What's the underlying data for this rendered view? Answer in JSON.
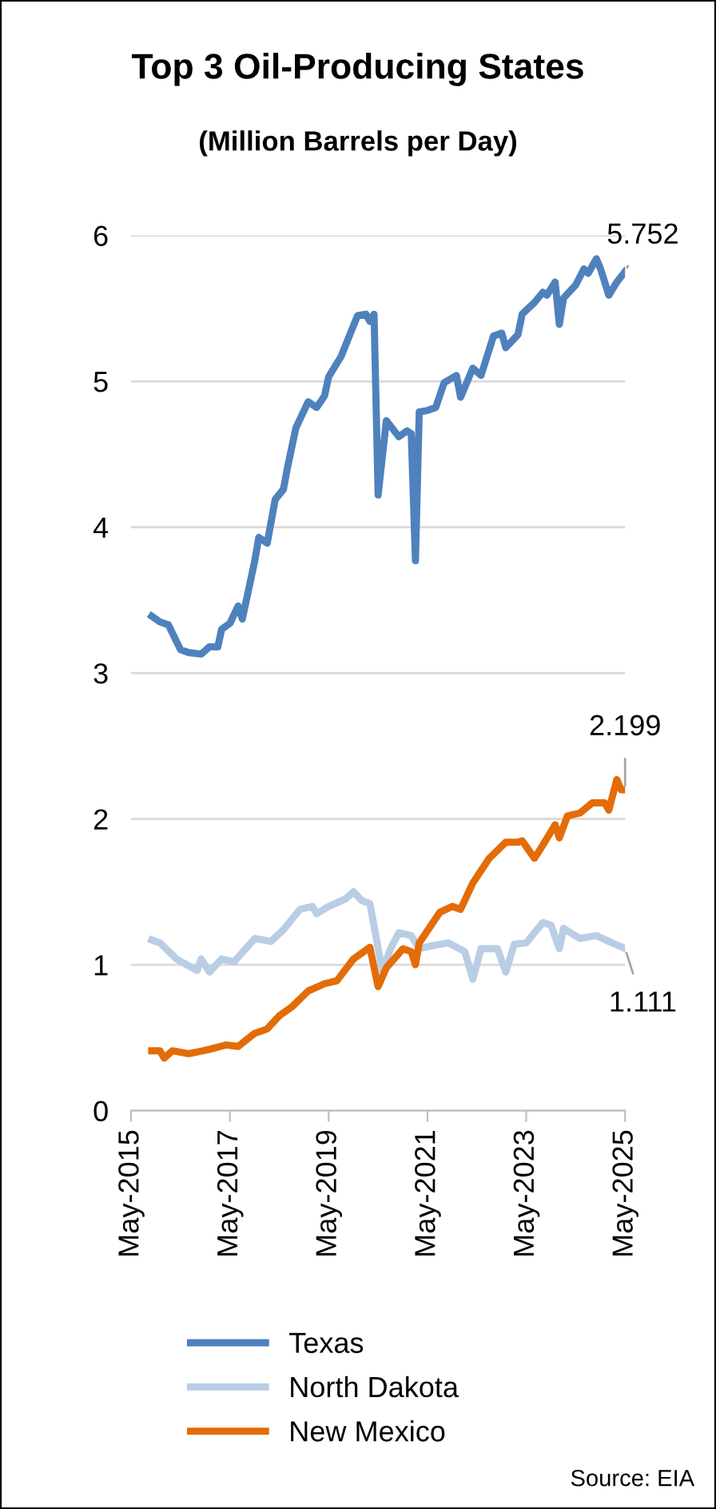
{
  "chart_data": {
    "type": "line",
    "title": "Top 3 Oil-Producing States",
    "subtitle": "(Million Barrels per Day)",
    "xlim": [
      "2015-05",
      "2025-05"
    ],
    "xticks": [
      {
        "value": "2015-05",
        "label": "May-2015"
      },
      {
        "value": "2017-05",
        "label": "May-2017"
      },
      {
        "value": "2019-05",
        "label": "May-2019"
      },
      {
        "value": "2021-05",
        "label": "May-2021"
      },
      {
        "value": "2023-05",
        "label": "May-2023"
      },
      {
        "value": "2025-05",
        "label": "May-2025"
      }
    ],
    "ylim": [
      0,
      6
    ],
    "yticks": [
      0,
      1,
      2,
      3,
      4,
      5,
      6
    ],
    "grid": "y",
    "legend": "bottom",
    "marker": "none",
    "line_style": "solid",
    "series": [
      {
        "name": "Texas",
        "color": "#4f81bd",
        "x": [
          "2015-10",
          "2015-12",
          "2016-02",
          "2016-05",
          "2016-07",
          "2016-10",
          "2016-12",
          "2017-02",
          "2017-03",
          "2017-05",
          "2017-07",
          "2017-08",
          "2017-11",
          "2017-12",
          "2018-02",
          "2018-04",
          "2018-06",
          "2018-07",
          "2018-09",
          "2018-12",
          "2019-02",
          "2019-04",
          "2019-05",
          "2019-08",
          "2019-12",
          "2020-02",
          "2020-03",
          "2020-04",
          "2020-05",
          "2020-07",
          "2020-10",
          "2020-12",
          "2021-01",
          "2021-02",
          "2021-03",
          "2021-05",
          "2021-07",
          "2021-09",
          "2021-12",
          "2022-01",
          "2022-04",
          "2022-06",
          "2022-09",
          "2022-11",
          "2022-12",
          "2023-03",
          "2023-04",
          "2023-07",
          "2023-09",
          "2023-10",
          "2023-12",
          "2024-01",
          "2024-02",
          "2024-05",
          "2024-07",
          "2024-08",
          "2024-10",
          "2024-11",
          "2025-01",
          "2025-03",
          "2025-05"
        ],
        "values": [
          3.39,
          3.35,
          3.33,
          3.16,
          3.14,
          3.13,
          3.18,
          3.18,
          3.3,
          3.34,
          3.46,
          3.37,
          3.77,
          3.93,
          3.89,
          4.19,
          4.26,
          4.41,
          4.68,
          4.86,
          4.82,
          4.9,
          5.03,
          5.17,
          5.45,
          5.46,
          5.41,
          5.46,
          4.22,
          4.73,
          4.62,
          4.66,
          4.64,
          3.77,
          4.79,
          4.8,
          4.82,
          4.99,
          5.04,
          4.89,
          5.09,
          5.04,
          5.31,
          5.33,
          5.23,
          5.32,
          5.46,
          5.54,
          5.61,
          5.59,
          5.68,
          5.39,
          5.57,
          5.66,
          5.77,
          5.74,
          5.84,
          5.77,
          5.59,
          5.68,
          5.752
        ]
      },
      {
        "name": "North Dakota",
        "color": "#b9cde5",
        "x": [
          "2015-10",
          "2015-12",
          "2016-04",
          "2016-09",
          "2016-10",
          "2016-12",
          "2017-03",
          "2017-06",
          "2017-11",
          "2018-03",
          "2018-06",
          "2018-10",
          "2019-01",
          "2019-02",
          "2019-05",
          "2019-09",
          "2019-11",
          "2020-01",
          "2020-03",
          "2020-06",
          "2020-08",
          "2020-10",
          "2021-01",
          "2021-03",
          "2021-06",
          "2021-10",
          "2022-02",
          "2022-04",
          "2022-06",
          "2022-10",
          "2022-12",
          "2023-02",
          "2023-05",
          "2023-09",
          "2023-11",
          "2024-01",
          "2024-02",
          "2024-06",
          "2024-10",
          "2025-01",
          "2025-05"
        ],
        "values": [
          1.17,
          1.15,
          1.04,
          0.96,
          1.04,
          0.95,
          1.04,
          1.02,
          1.18,
          1.16,
          1.24,
          1.38,
          1.4,
          1.35,
          1.4,
          1.45,
          1.5,
          1.44,
          1.42,
          0.96,
          1.11,
          1.22,
          1.2,
          1.11,
          1.13,
          1.15,
          1.09,
          0.9,
          1.11,
          1.11,
          0.95,
          1.14,
          1.15,
          1.29,
          1.27,
          1.11,
          1.25,
          1.18,
          1.2,
          1.16,
          1.111
        ]
      },
      {
        "name": "New Mexico",
        "color": "#e36c09",
        "x": [
          "2015-10",
          "2015-12",
          "2016-01",
          "2016-03",
          "2016-07",
          "2016-12",
          "2017-04",
          "2017-07",
          "2017-11",
          "2018-02",
          "2018-05",
          "2018-08",
          "2018-12",
          "2019-04",
          "2019-07",
          "2019-11",
          "2020-03",
          "2020-05",
          "2020-07",
          "2020-11",
          "2021-01",
          "2021-02",
          "2021-03",
          "2021-08",
          "2021-11",
          "2022-01",
          "2022-04",
          "2022-08",
          "2022-12",
          "2023-03",
          "2023-04",
          "2023-07",
          "2023-09",
          "2023-12",
          "2024-01",
          "2024-03",
          "2024-06",
          "2024-09",
          "2024-12",
          "2025-01",
          "2025-03",
          "2025-04",
          "2025-05"
        ],
        "values": [
          0.41,
          0.41,
          0.36,
          0.41,
          0.39,
          0.42,
          0.45,
          0.44,
          0.53,
          0.56,
          0.65,
          0.71,
          0.82,
          0.87,
          0.89,
          1.04,
          1.12,
          0.85,
          0.98,
          1.11,
          1.09,
          1.0,
          1.15,
          1.36,
          1.4,
          1.38,
          1.56,
          1.73,
          1.84,
          1.84,
          1.85,
          1.73,
          1.82,
          1.96,
          1.87,
          2.02,
          2.04,
          2.11,
          2.11,
          2.06,
          2.27,
          2.2,
          2.199
        ]
      }
    ],
    "annotations": [
      {
        "text": "5.752",
        "x": "2025-05",
        "y": 5.752
      },
      {
        "text": "2.199",
        "x": "2025-05",
        "y": 2.199
      },
      {
        "text": "1.111",
        "x": "2025-05",
        "y": 1.111
      },
      "Source: EIA"
    ]
  }
}
